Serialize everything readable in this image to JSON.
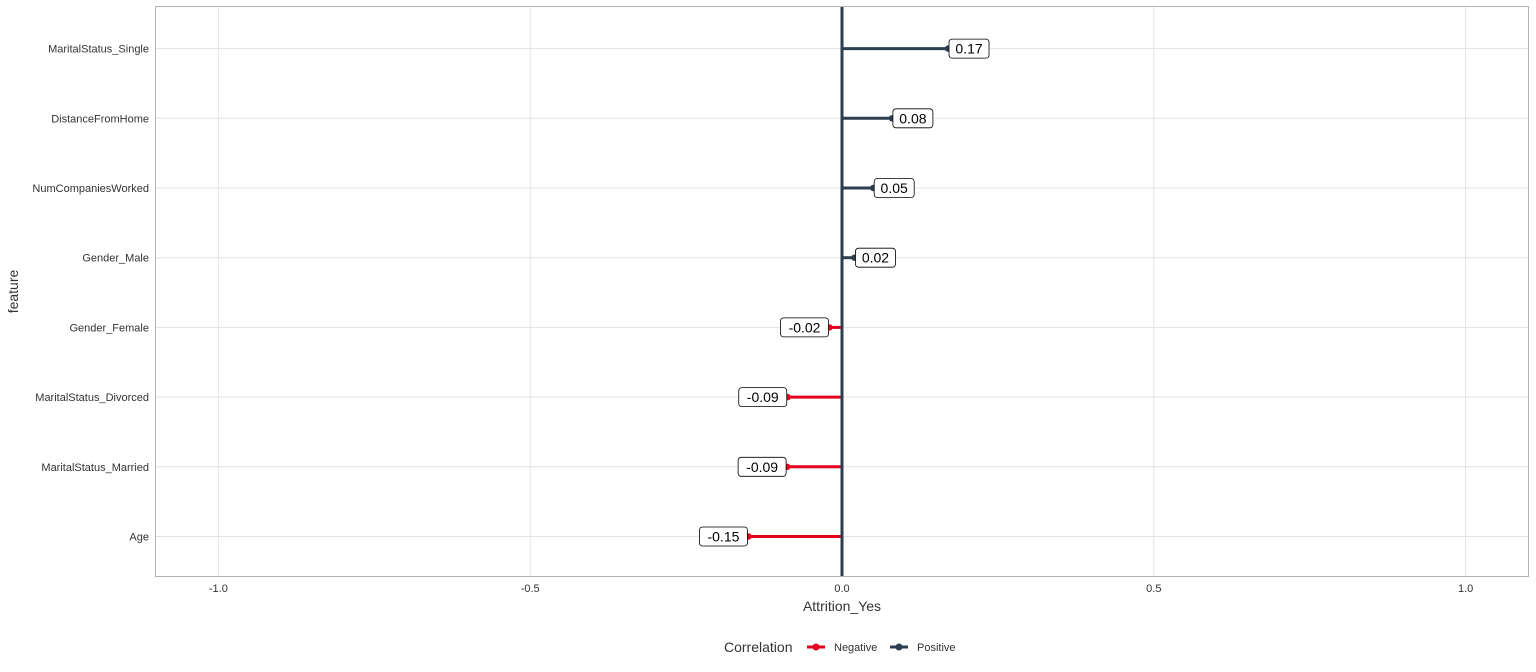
{
  "chart_data": {
    "type": "bar",
    "style": "lollipop",
    "orientation": "horizontal",
    "categories": [
      "Age",
      "MaritalStatus_Married",
      "MaritalStatus_Divorced",
      "Gender_Female",
      "Gender_Male",
      "NumCompaniesWorked",
      "DistanceFromHome",
      "MaritalStatus_Single"
    ],
    "values": [
      -0.15,
      -0.088,
      -0.087,
      -0.02,
      0.02,
      0.05,
      0.08,
      0.17
    ],
    "data_labels": [
      "-0.15",
      "-0.09",
      "-0.09",
      "-0.02",
      "0.02",
      "0.05",
      "0.08",
      "0.17"
    ],
    "groups": [
      "Negative",
      "Negative",
      "Negative",
      "Negative",
      "Positive",
      "Positive",
      "Positive",
      "Positive"
    ],
    "xlabel": "Attrition_Yes",
    "ylabel": "feature",
    "xlim": [
      -1.1,
      1.1
    ],
    "x_ticks": [
      -1.0,
      -0.5,
      0.0,
      0.5,
      1.0
    ],
    "x_tick_labels": [
      "-1.0",
      "-0.5",
      "0.0",
      "0.5",
      "1.0"
    ],
    "grid": true,
    "reference_line_x": 0,
    "legend": {
      "title": "Correlation",
      "position": "bottom",
      "entries": [
        {
          "label": "Negative",
          "color": "#e3001b"
        },
        {
          "label": "Positive",
          "color": "#2c3e50"
        }
      ]
    }
  }
}
